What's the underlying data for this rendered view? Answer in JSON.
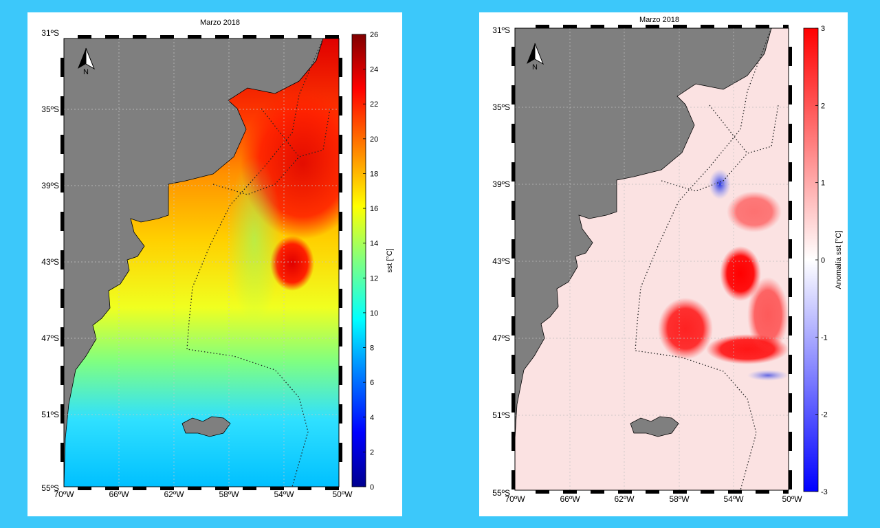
{
  "maps": [
    {
      "id": "sst",
      "title": "Marzo 2018",
      "colorbar_label": "sst [°C]",
      "colorbar_ticks": [
        "0",
        "2",
        "4",
        "6",
        "8",
        "10",
        "12",
        "14",
        "16",
        "18",
        "20",
        "22",
        "24",
        "26"
      ],
      "colorbar_range": [
        0,
        26
      ],
      "colors": [
        "#00008f",
        "#0000ff",
        "#0080ff",
        "#00ffff",
        "#80ff80",
        "#ffff00",
        "#ff8000",
        "#ff0000",
        "#800000"
      ]
    },
    {
      "id": "anom",
      "title": "Marzo 2018",
      "colorbar_label": "Anomalía sst [°C]",
      "colorbar_ticks": [
        "-3",
        "-2",
        "-1",
        "0",
        "1",
        "2",
        "3"
      ],
      "colorbar_range": [
        -3,
        3
      ],
      "colors": [
        "#0000ff",
        "#ffffff",
        "#ff0000"
      ]
    }
  ],
  "axes": {
    "lat_labels": [
      "31ºS",
      "35ºS",
      "39ºS",
      "43ºS",
      "47ºS",
      "51ºS",
      "55ºS"
    ],
    "lon_labels": [
      "70ºW",
      "66ºW",
      "62ºW",
      "58ºW",
      "54ºW",
      "50ºW"
    ]
  },
  "north_arrow": {
    "icon": "north-arrow-icon",
    "letter": "N"
  },
  "land_color": "#7f7f7f"
}
